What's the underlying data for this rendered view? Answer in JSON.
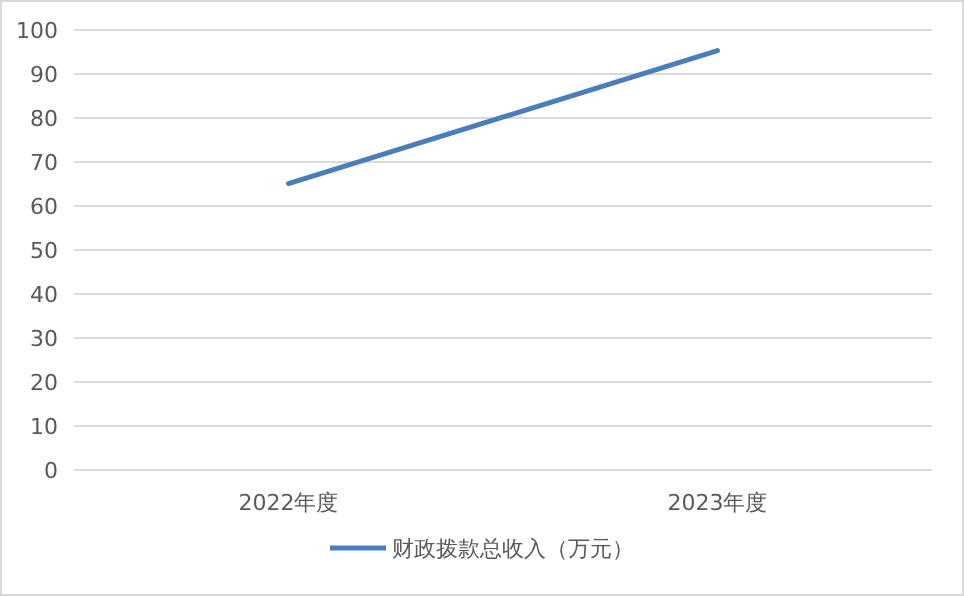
{
  "chart_data": {
    "type": "line",
    "categories": [
      "2022年度",
      "2023年度"
    ],
    "series": [
      {
        "name": "财政拨款总收入（万元）",
        "color": "#4a7ebb",
        "values": [
          65.1,
          95.3
        ]
      }
    ],
    "ylim": [
      0,
      100
    ],
    "yticks": [
      0,
      10,
      20,
      30,
      40,
      50,
      60,
      70,
      80,
      90,
      100
    ],
    "grid": "y",
    "legend": "bottom",
    "marker": "none",
    "line_style": "solid"
  }
}
